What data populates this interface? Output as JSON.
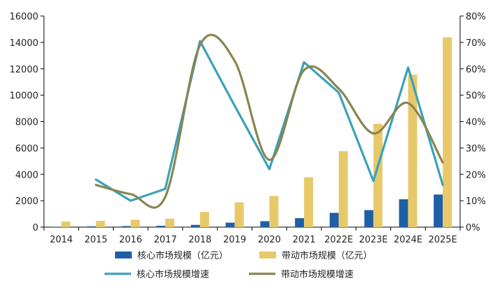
{
  "chart_data": {
    "type": "bar",
    "categories": [
      "2014",
      "2015",
      "2016",
      "2017",
      "2018",
      "2019",
      "2020",
      "2021",
      "2022E",
      "2023E",
      "2024E",
      "2025E"
    ],
    "y_left": {
      "min": 0,
      "max": 16000,
      "ticks": [
        "0",
        "2000",
        "4000",
        "6000",
        "8000",
        "10000",
        "12000",
        "14000",
        "16000"
      ]
    },
    "y_right": {
      "min": 0,
      "max": 80,
      "ticks": [
        "0%",
        "10%",
        "20%",
        "30%",
        "40%",
        "50%",
        "60%",
        "70%",
        "80%"
      ]
    },
    "series": [
      {
        "name": "核心市场规模（亿元）",
        "kind": "bar",
        "axis": "left",
        "color": "#1f5fa6",
        "values": [
          30,
          60,
          80,
          100,
          170,
          340,
          450,
          680,
          1080,
          1290,
          2110,
          2470
        ]
      },
      {
        "name": "带动市场规模（亿元）",
        "kind": "bar",
        "axis": "left",
        "color": "#e8c96a",
        "values": [
          420,
          480,
          560,
          640,
          1150,
          1880,
          2360,
          3780,
          5760,
          7830,
          11550,
          14380
        ]
      },
      {
        "name": "核心市场规模增速",
        "kind": "line",
        "axis": "right",
        "color": "#3aa1b8",
        "values": [
          null,
          18,
          10,
          14.5,
          70.5,
          46,
          22,
          62.5,
          51,
          17.5,
          60.5,
          16
        ]
      },
      {
        "name": "带动市场规模增速",
        "kind": "line",
        "axis": "right",
        "color": "#8a8450",
        "values": [
          null,
          16,
          12.5,
          11.5,
          69,
          63,
          25.5,
          59.5,
          52.5,
          35.5,
          47,
          24.5
        ]
      }
    ],
    "legend_position": "bottom",
    "grid": false
  }
}
